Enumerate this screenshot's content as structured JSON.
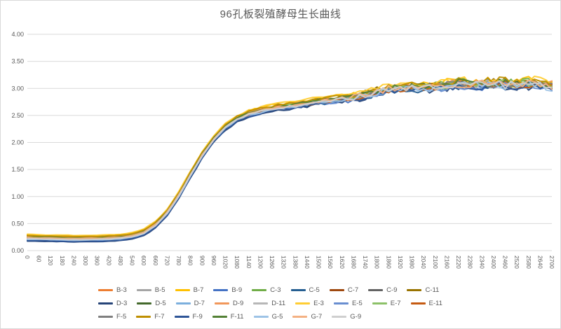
{
  "chart": {
    "title": "96孔板裂殖酵母生长曲线",
    "colors": {
      "text": "#595959",
      "tick_text": "#595959",
      "gridline": "#d9d9d9",
      "axis_line": "#d9d9d9",
      "background": "#ffffff",
      "border": "#d9d9d9"
    }
  },
  "chart_data": {
    "type": "line",
    "title": "96孔板裂殖酵母生长曲线",
    "xlabel": "",
    "ylabel": "",
    "ylim": [
      0,
      4
    ],
    "grid": true,
    "legend_position": "bottom",
    "y_tick_labels": [
      "0.00",
      "0.50",
      "1.00",
      "1.50",
      "2.00",
      "2.50",
      "3.00",
      "3.50",
      "4.00"
    ],
    "x": [
      0,
      60,
      120,
      180,
      240,
      300,
      360,
      420,
      480,
      540,
      600,
      660,
      720,
      780,
      840,
      900,
      960,
      1020,
      1080,
      1140,
      1200,
      1260,
      1320,
      1380,
      1440,
      1500,
      1560,
      1620,
      1680,
      1740,
      1800,
      1860,
      1920,
      1980,
      2040,
      2100,
      2160,
      2220,
      2280,
      2340,
      2400,
      2460,
      2520,
      2580,
      2640,
      2700
    ],
    "note": "25 tightly overlapping sigmoidal growth curves (OD vs minutes). Each well value = base_values + series offset + noise_amplitude * deterministic noise.",
    "base_values": [
      0.23,
      0.225,
      0.22,
      0.215,
      0.212,
      0.212,
      0.215,
      0.222,
      0.235,
      0.265,
      0.33,
      0.47,
      0.7,
      1.02,
      1.4,
      1.76,
      2.06,
      2.28,
      2.43,
      2.52,
      2.58,
      2.625,
      2.66,
      2.69,
      2.72,
      2.75,
      2.775,
      2.8,
      2.83,
      2.87,
      2.93,
      2.98,
      3.0,
      3.01,
      3.01,
      3.03,
      3.05,
      3.09,
      3.06,
      3.07,
      3.09,
      3.08,
      3.07,
      3.09,
      3.07,
      3.04
    ],
    "noise_amplitude": [
      0.005,
      0.005,
      0.005,
      0.005,
      0.005,
      0.005,
      0.005,
      0.005,
      0.005,
      0.005,
      0.006,
      0.007,
      0.008,
      0.009,
      0.01,
      0.01,
      0.011,
      0.012,
      0.014,
      0.016,
      0.018,
      0.02,
      0.022,
      0.026,
      0.028,
      0.03,
      0.034,
      0.04,
      0.045,
      0.05,
      0.055,
      0.06,
      0.06,
      0.062,
      0.065,
      0.065,
      0.075,
      0.085,
      0.07,
      0.07,
      0.08,
      0.085,
      0.07,
      0.08,
      0.07,
      0.075
    ],
    "series": [
      {
        "name": "B-3",
        "color": "#ED7D31",
        "offset": 0.01,
        "seed": 1
      },
      {
        "name": "B-5",
        "color": "#A5A5A5",
        "offset": 0.02,
        "seed": 2
      },
      {
        "name": "B-7",
        "color": "#FFC000",
        "offset": 0.06,
        "seed": 3
      },
      {
        "name": "B-9",
        "color": "#4472C4",
        "offset": -0.04,
        "seed": 4
      },
      {
        "name": "C-3",
        "color": "#70AD47",
        "offset": 0.03,
        "seed": 5
      },
      {
        "name": "C-5",
        "color": "#255E91",
        "offset": -0.03,
        "seed": 6
      },
      {
        "name": "C-7",
        "color": "#9E480E",
        "offset": 0.0,
        "seed": 7
      },
      {
        "name": "C-9",
        "color": "#636363",
        "offset": 0.012,
        "seed": 8
      },
      {
        "name": "C-11",
        "color": "#997300",
        "offset": 0.05,
        "seed": 9
      },
      {
        "name": "D-3",
        "color": "#264478",
        "offset": -0.05,
        "seed": 10
      },
      {
        "name": "D-5",
        "color": "#43682B",
        "offset": 0.022,
        "seed": 11
      },
      {
        "name": "D-7",
        "color": "#7CAFDD",
        "offset": -0.02,
        "seed": 12
      },
      {
        "name": "D-9",
        "color": "#F1975A",
        "offset": 0.032,
        "seed": 13
      },
      {
        "name": "D-11",
        "color": "#B7B7B7",
        "offset": 0.002,
        "seed": 14
      },
      {
        "name": "E-3",
        "color": "#FFCD33",
        "offset": 0.07,
        "seed": 15
      },
      {
        "name": "E-5",
        "color": "#698ED0",
        "offset": -0.028,
        "seed": 16
      },
      {
        "name": "E-7",
        "color": "#8CC168",
        "offset": 0.015,
        "seed": 17
      },
      {
        "name": "E-11",
        "color": "#C55A11",
        "offset": -0.01,
        "seed": 18
      },
      {
        "name": "F-5",
        "color": "#7F7F7F",
        "offset": 0.0,
        "seed": 19
      },
      {
        "name": "F-7",
        "color": "#BF8F00",
        "offset": 0.048,
        "seed": 20
      },
      {
        "name": "F-9",
        "color": "#2E5597",
        "offset": -0.042,
        "seed": 21
      },
      {
        "name": "F-11",
        "color": "#538135",
        "offset": 0.02,
        "seed": 22
      },
      {
        "name": "G-5",
        "color": "#9DC3E6",
        "offset": -0.018,
        "seed": 23
      },
      {
        "name": "G-7",
        "color": "#F4B183",
        "offset": 0.012,
        "seed": 24
      },
      {
        "name": "G-9",
        "color": "#CFCFCF",
        "offset": -0.008,
        "seed": 25
      }
    ]
  }
}
